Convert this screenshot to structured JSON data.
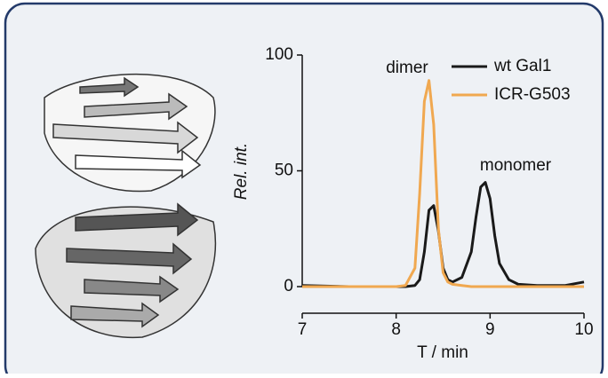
{
  "chart_data": {
    "type": "line",
    "xlabel": "T / min",
    "ylabel": "Rel. int.",
    "annotations": [
      "dimer",
      "monomer"
    ],
    "x": [
      7,
      7.5,
      8,
      8.1,
      8.2,
      8.25,
      8.3,
      8.35,
      8.4,
      8.45,
      8.5,
      8.55,
      8.6,
      8.7,
      8.8,
      8.85,
      8.9,
      8.95,
      9,
      9.05,
      9.1,
      9.2,
      9.3,
      9.5,
      9.8,
      10
    ],
    "series": [
      {
        "name": "wt Gal1",
        "color": "#1a1a1a",
        "values": [
          0.5,
          0,
          0,
          0,
          0.5,
          3,
          15,
          33,
          35,
          24,
          8,
          3,
          2,
          4,
          15,
          30,
          43,
          45,
          38,
          22,
          10,
          3,
          1,
          0.5,
          0.5,
          2
        ]
      },
      {
        "name": "ICR-G503",
        "color": "#f0a850",
        "values": [
          0,
          0,
          0,
          0.5,
          8,
          40,
          80,
          89,
          70,
          25,
          6,
          2,
          1,
          0.5,
          0,
          0,
          0,
          0,
          0,
          0,
          0,
          0,
          0,
          0,
          0,
          0
        ]
      }
    ],
    "xlim": [
      7,
      10
    ],
    "xticks": [
      7,
      8,
      9,
      10
    ],
    "ylim": [
      0,
      100
    ],
    "yticks": [
      0,
      50,
      100
    ]
  }
}
